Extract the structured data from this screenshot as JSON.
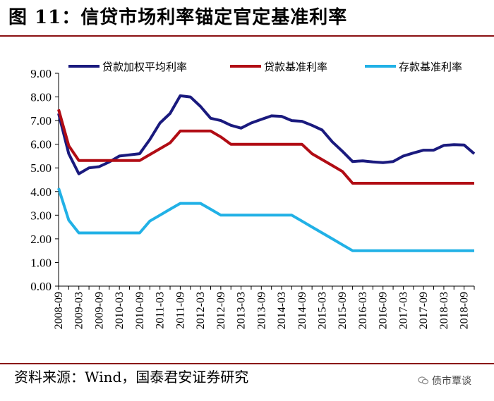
{
  "header": {
    "title": "图 11：信贷市场利率锚定官定基准利率"
  },
  "footer": {
    "source": "资料来源：Wind，国泰君安证券研究",
    "watermark": "债市覃谈"
  },
  "colors": {
    "loan_weighted": "#1a1a7e",
    "loan_benchmark": "#b10c14",
    "deposit_benchmark": "#21b1e6",
    "rule": "#8a0f12"
  },
  "chart_data": {
    "type": "line",
    "title": "",
    "xlabel": "",
    "ylabel": "",
    "ylim": [
      0,
      9
    ],
    "yticks": [
      "0.00",
      "1.00",
      "2.00",
      "3.00",
      "4.00",
      "5.00",
      "6.00",
      "7.00",
      "8.00",
      "9.00"
    ],
    "x_start": "2008-09",
    "x_step_months": 3,
    "x_count": 42,
    "xtick_labels": [
      "2008-09",
      "2009-03",
      "2009-09",
      "2010-03",
      "2010-09",
      "2011-03",
      "2011-09",
      "2012-03",
      "2012-09",
      "2013-03",
      "2013-09",
      "2014-03",
      "2014-09",
      "2015-03",
      "2015-09",
      "2016-03",
      "2016-09",
      "2017-03",
      "2017-09",
      "2018-03",
      "2018-09"
    ],
    "series": [
      {
        "name": "贷款加权平均利率",
        "color_key": "loan_weighted",
        "values": [
          7.3,
          5.6,
          4.75,
          5.0,
          5.05,
          5.25,
          5.5,
          5.55,
          5.6,
          6.2,
          6.9,
          7.3,
          8.05,
          8.0,
          7.6,
          7.1,
          7.0,
          6.8,
          6.68,
          6.9,
          7.05,
          7.2,
          7.18,
          7.0,
          6.97,
          6.8,
          6.6,
          6.1,
          5.7,
          5.27,
          5.3,
          5.25,
          5.22,
          5.27,
          5.5,
          5.63,
          5.75,
          5.75,
          5.95,
          5.98,
          5.97,
          5.6
        ]
      },
      {
        "name": "贷款基准利率",
        "color_key": "loan_benchmark",
        "values": [
          7.47,
          5.94,
          5.31,
          5.31,
          5.31,
          5.31,
          5.31,
          5.31,
          5.31,
          5.56,
          5.81,
          6.06,
          6.56,
          6.56,
          6.56,
          6.56,
          6.31,
          6.0,
          6.0,
          6.0,
          6.0,
          6.0,
          6.0,
          6.0,
          6.0,
          5.6,
          5.35,
          5.1,
          4.85,
          4.35,
          4.35,
          4.35,
          4.35,
          4.35,
          4.35,
          4.35,
          4.35,
          4.35,
          4.35,
          4.35,
          4.35,
          4.35
        ]
      },
      {
        "name": "存款基准利率",
        "color_key": "deposit_benchmark",
        "values": [
          4.14,
          2.79,
          2.25,
          2.25,
          2.25,
          2.25,
          2.25,
          2.25,
          2.25,
          2.75,
          3.0,
          3.25,
          3.5,
          3.5,
          3.5,
          3.25,
          3.0,
          3.0,
          3.0,
          3.0,
          3.0,
          3.0,
          3.0,
          3.0,
          2.75,
          2.5,
          2.25,
          2.0,
          1.75,
          1.5,
          1.5,
          1.5,
          1.5,
          1.5,
          1.5,
          1.5,
          1.5,
          1.5,
          1.5,
          1.5,
          1.5,
          1.5
        ]
      }
    ],
    "legend_position": "top"
  }
}
